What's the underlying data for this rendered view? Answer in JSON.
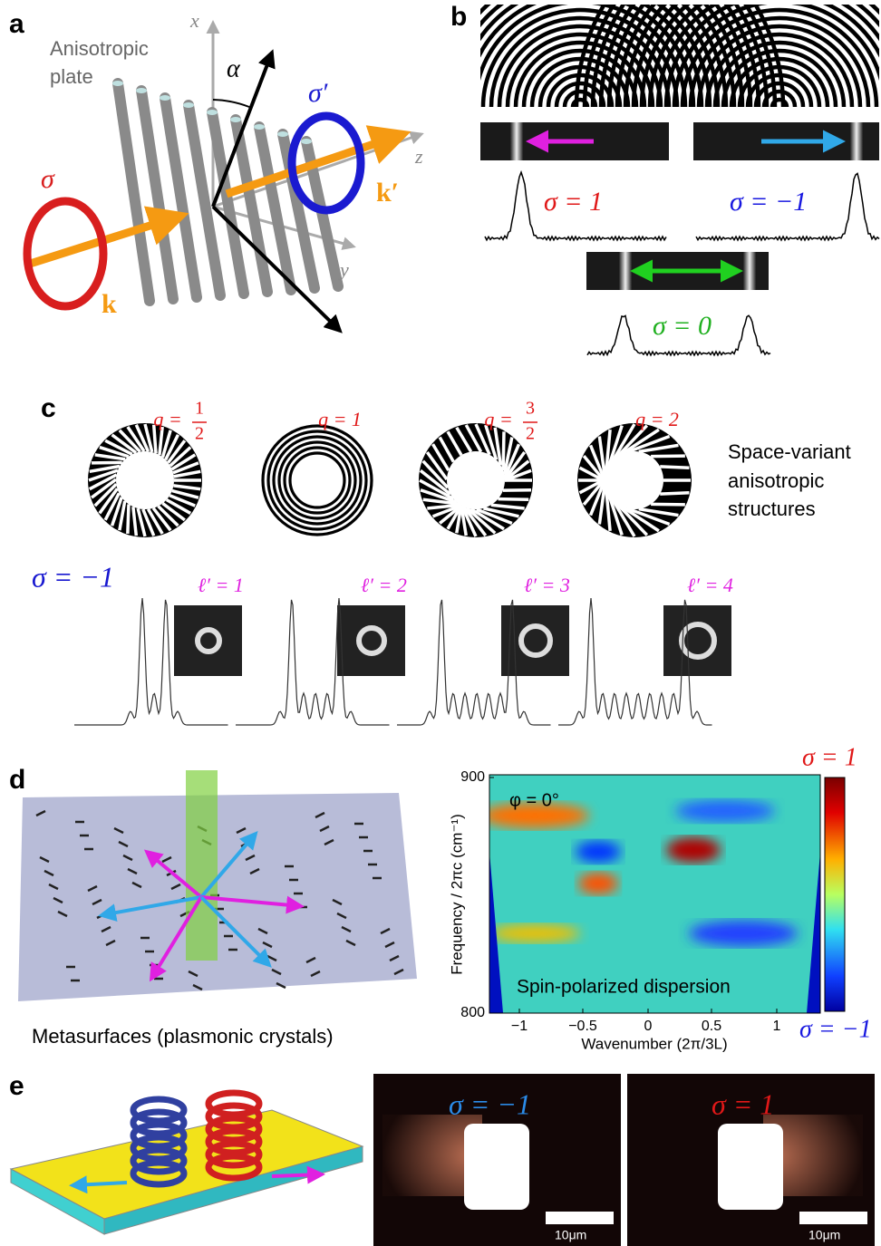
{
  "panels": {
    "a": {
      "label": "a",
      "plate_label": [
        "Anisotropic",
        "plate"
      ],
      "axis_x": "x",
      "axis_y": "y",
      "axis_z": "z",
      "angle": "α",
      "sigma_in": "σ",
      "sigma_out": "σ′",
      "k_in": "k",
      "k_out": "k′"
    },
    "b": {
      "label": "b",
      "sigma_plus": "σ = 1",
      "sigma_minus": "σ = −1",
      "sigma_zero": "σ = 0"
    },
    "c": {
      "label": "c",
      "structures": [
        {
          "prefix": "q =",
          "num": "1",
          "den": "2"
        },
        {
          "prefix": "q = 1"
        },
        {
          "prefix": "q =",
          "num": "3",
          "den": "2"
        },
        {
          "prefix": "q = 2"
        }
      ],
      "caption": [
        "Space-variant",
        "anisotropic",
        "structures"
      ],
      "sigma": "σ = −1",
      "modes": [
        "ℓ′ = 1",
        "ℓ′ = 2",
        "ℓ′ = 3",
        "ℓ′ = 4"
      ]
    },
    "d": {
      "label": "d",
      "caption": "Metasurfaces (plasmonic crystals)",
      "plot": {
        "y_label": "Frequency / 2πc (cm⁻¹)",
        "x_label": "Wavenumber (2π/3L)",
        "y_ticks": [
          "900",
          "800"
        ],
        "x_ticks": [
          "−1",
          "−0.5",
          "0",
          "0.5",
          "1"
        ],
        "phi": "φ = 0°",
        "inset": "Spin-polarized dispersion",
        "colorbar_top": "σ = 1",
        "colorbar_bottom": "σ = −1"
      }
    },
    "e": {
      "label": "e",
      "left_image": {
        "sigma": "σ = −1",
        "scale": "10μm"
      },
      "right_image": {
        "sigma": "σ = 1",
        "scale": "10μm"
      }
    }
  }
}
